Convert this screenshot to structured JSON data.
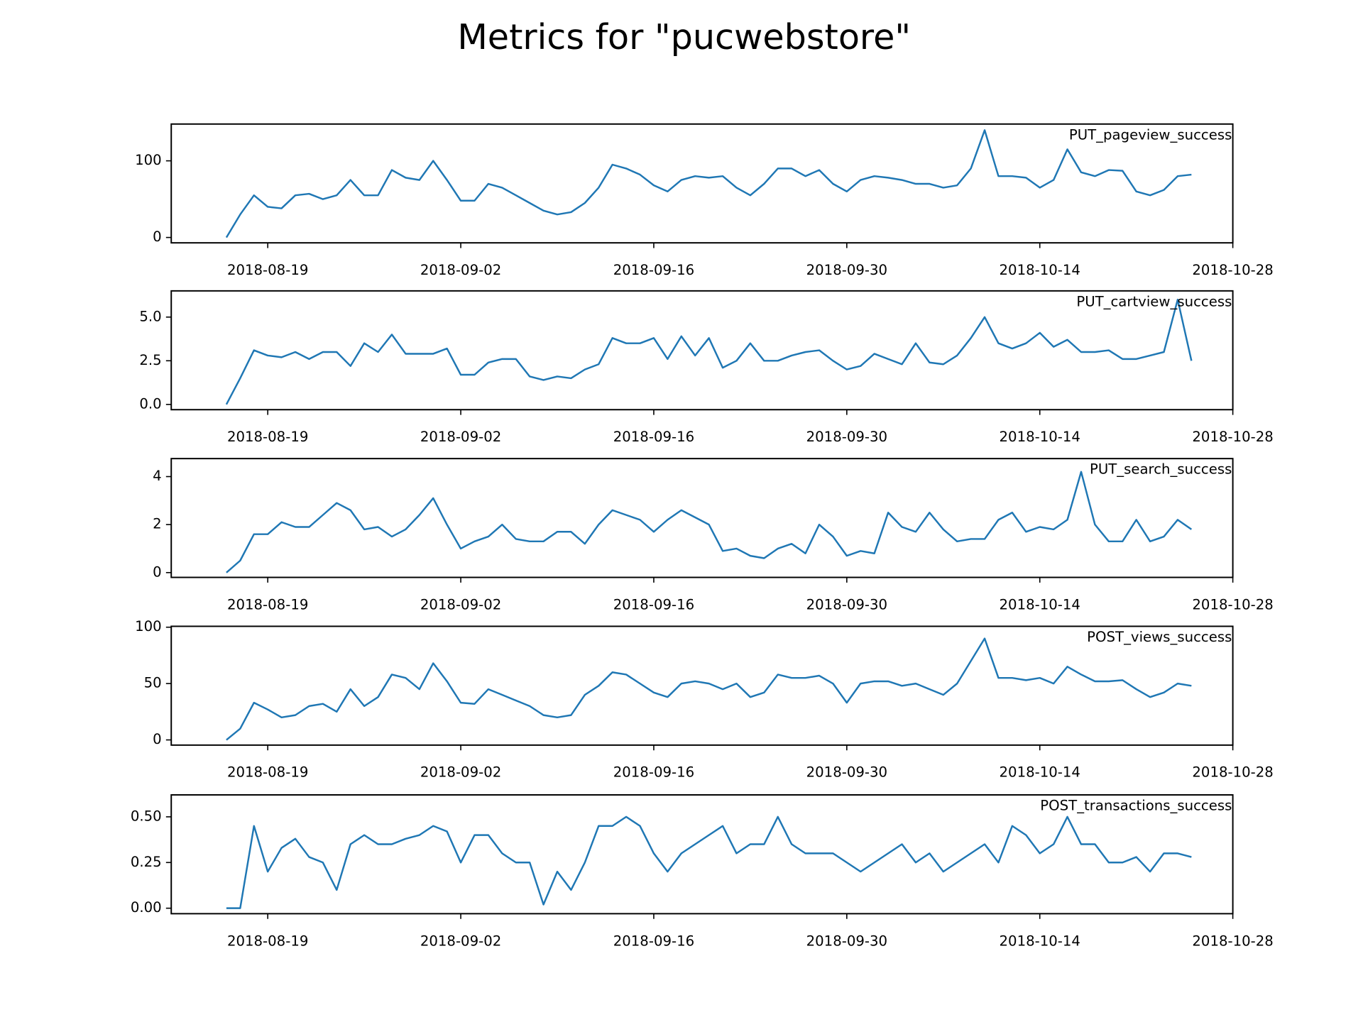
{
  "title": "Metrics for \"pucwebstore\"",
  "chart_data": [
    {
      "type": "line",
      "title": "PUT_pageview_success",
      "color": "#1f77b4",
      "x": [
        "2018-08-16",
        "2018-08-17",
        "2018-08-18",
        "2018-08-19",
        "2018-08-20",
        "2018-08-21",
        "2018-08-22",
        "2018-08-23",
        "2018-08-24",
        "2018-08-25",
        "2018-08-26",
        "2018-08-27",
        "2018-08-28",
        "2018-08-29",
        "2018-08-30",
        "2018-08-31",
        "2018-09-01",
        "2018-09-02",
        "2018-09-03",
        "2018-09-04",
        "2018-09-05",
        "2018-09-06",
        "2018-09-07",
        "2018-09-08",
        "2018-09-09",
        "2018-09-10",
        "2018-09-11",
        "2018-09-12",
        "2018-09-13",
        "2018-09-14",
        "2018-09-15",
        "2018-09-16",
        "2018-09-17",
        "2018-09-18",
        "2018-09-19",
        "2018-09-20",
        "2018-09-21",
        "2018-09-22",
        "2018-09-23",
        "2018-09-24",
        "2018-09-25",
        "2018-09-26",
        "2018-09-27",
        "2018-09-28",
        "2018-09-29",
        "2018-09-30",
        "2018-10-01",
        "2018-10-02",
        "2018-10-03",
        "2018-10-04",
        "2018-10-05",
        "2018-10-06",
        "2018-10-07",
        "2018-10-08",
        "2018-10-09",
        "2018-10-10",
        "2018-10-11",
        "2018-10-12",
        "2018-10-13",
        "2018-10-14",
        "2018-10-15",
        "2018-10-16",
        "2018-10-17",
        "2018-10-18",
        "2018-10-19",
        "2018-10-20",
        "2018-10-21",
        "2018-10-22",
        "2018-10-23",
        "2018-10-24",
        "2018-10-25"
      ],
      "values": [
        0,
        30,
        55,
        40,
        38,
        55,
        57,
        50,
        55,
        75,
        55,
        55,
        88,
        78,
        75,
        100,
        75,
        48,
        48,
        70,
        65,
        55,
        45,
        35,
        30,
        33,
        45,
        65,
        95,
        90,
        82,
        68,
        60,
        75,
        80,
        78,
        80,
        65,
        55,
        70,
        90,
        90,
        80,
        88,
        70,
        60,
        75,
        80,
        78,
        75,
        70,
        70,
        65,
        68,
        90,
        140,
        80,
        80,
        78,
        65,
        75,
        115,
        85,
        80,
        88,
        87,
        60,
        55,
        62,
        80,
        82
      ],
      "xlim": [
        "2018-08-12",
        "2018-10-28"
      ],
      "xticks": [
        "2018-08-19",
        "2018-09-02",
        "2018-09-16",
        "2018-09-30",
        "2018-10-14",
        "2018-10-28"
      ],
      "ylim": [
        -7,
        148
      ],
      "yticks": [
        0,
        100
      ]
    },
    {
      "type": "line",
      "title": "PUT_cartview_success",
      "color": "#1f77b4",
      "x": [
        "2018-08-16",
        "2018-08-17",
        "2018-08-18",
        "2018-08-19",
        "2018-08-20",
        "2018-08-21",
        "2018-08-22",
        "2018-08-23",
        "2018-08-24",
        "2018-08-25",
        "2018-08-26",
        "2018-08-27",
        "2018-08-28",
        "2018-08-29",
        "2018-08-30",
        "2018-08-31",
        "2018-09-01",
        "2018-09-02",
        "2018-09-03",
        "2018-09-04",
        "2018-09-05",
        "2018-09-06",
        "2018-09-07",
        "2018-09-08",
        "2018-09-09",
        "2018-09-10",
        "2018-09-11",
        "2018-09-12",
        "2018-09-13",
        "2018-09-14",
        "2018-09-15",
        "2018-09-16",
        "2018-09-17",
        "2018-09-18",
        "2018-09-19",
        "2018-09-20",
        "2018-09-21",
        "2018-09-22",
        "2018-09-23",
        "2018-09-24",
        "2018-09-25",
        "2018-09-26",
        "2018-09-27",
        "2018-09-28",
        "2018-09-29",
        "2018-09-30",
        "2018-10-01",
        "2018-10-02",
        "2018-10-03",
        "2018-10-04",
        "2018-10-05",
        "2018-10-06",
        "2018-10-07",
        "2018-10-08",
        "2018-10-09",
        "2018-10-10",
        "2018-10-11",
        "2018-10-12",
        "2018-10-13",
        "2018-10-14",
        "2018-10-15",
        "2018-10-16",
        "2018-10-17",
        "2018-10-18",
        "2018-10-19",
        "2018-10-20",
        "2018-10-21",
        "2018-10-22",
        "2018-10-23",
        "2018-10-24",
        "2018-10-25"
      ],
      "values": [
        0,
        1.5,
        3.1,
        2.8,
        2.7,
        3.0,
        2.6,
        3.0,
        3.0,
        2.2,
        3.5,
        3.0,
        4.0,
        2.9,
        2.9,
        2.9,
        3.2,
        1.7,
        1.7,
        2.4,
        2.6,
        2.6,
        1.6,
        1.4,
        1.6,
        1.5,
        2.0,
        2.3,
        3.8,
        3.5,
        3.5,
        3.8,
        2.6,
        3.9,
        2.8,
        3.8,
        2.1,
        2.5,
        3.5,
        2.5,
        2.5,
        2.8,
        3.0,
        3.1,
        2.5,
        2.0,
        2.2,
        2.9,
        2.6,
        2.3,
        3.5,
        2.4,
        2.3,
        2.8,
        3.8,
        5.0,
        3.5,
        3.2,
        3.5,
        4.1,
        3.3,
        3.7,
        3.0,
        3.0,
        3.1,
        2.6,
        2.6,
        2.8,
        3.0,
        6.0,
        2.5
      ],
      "xlim": [
        "2018-08-12",
        "2018-10-28"
      ],
      "xticks": [
        "2018-08-19",
        "2018-09-02",
        "2018-09-16",
        "2018-09-30",
        "2018-10-14",
        "2018-10-28"
      ],
      "ylim": [
        -0.3,
        6.5
      ],
      "yticks": [
        {
          "value": 0,
          "label": "0.0"
        },
        {
          "value": 2.5,
          "label": "2.5"
        },
        {
          "value": 5,
          "label": "5.0"
        }
      ]
    },
    {
      "type": "line",
      "title": "PUT_search_success",
      "color": "#1f77b4",
      "x": [
        "2018-08-16",
        "2018-08-17",
        "2018-08-18",
        "2018-08-19",
        "2018-08-20",
        "2018-08-21",
        "2018-08-22",
        "2018-08-23",
        "2018-08-24",
        "2018-08-25",
        "2018-08-26",
        "2018-08-27",
        "2018-08-28",
        "2018-08-29",
        "2018-08-30",
        "2018-08-31",
        "2018-09-01",
        "2018-09-02",
        "2018-09-03",
        "2018-09-04",
        "2018-09-05",
        "2018-09-06",
        "2018-09-07",
        "2018-09-08",
        "2018-09-09",
        "2018-09-10",
        "2018-09-11",
        "2018-09-12",
        "2018-09-13",
        "2018-09-14",
        "2018-09-15",
        "2018-09-16",
        "2018-09-17",
        "2018-09-18",
        "2018-09-19",
        "2018-09-20",
        "2018-09-21",
        "2018-09-22",
        "2018-09-23",
        "2018-09-24",
        "2018-09-25",
        "2018-09-26",
        "2018-09-27",
        "2018-09-28",
        "2018-09-29",
        "2018-09-30",
        "2018-10-01",
        "2018-10-02",
        "2018-10-03",
        "2018-10-04",
        "2018-10-05",
        "2018-10-06",
        "2018-10-07",
        "2018-10-08",
        "2018-10-09",
        "2018-10-10",
        "2018-10-11",
        "2018-10-12",
        "2018-10-13",
        "2018-10-14",
        "2018-10-15",
        "2018-10-16",
        "2018-10-17",
        "2018-10-18",
        "2018-10-19",
        "2018-10-20",
        "2018-10-21",
        "2018-10-22",
        "2018-10-23",
        "2018-10-24",
        "2018-10-25"
      ],
      "values": [
        0,
        0.5,
        1.6,
        1.6,
        2.1,
        1.9,
        1.9,
        2.4,
        2.9,
        2.6,
        1.8,
        1.9,
        1.5,
        1.8,
        2.4,
        3.1,
        2.0,
        1.0,
        1.3,
        1.5,
        2.0,
        1.4,
        1.3,
        1.3,
        1.7,
        1.7,
        1.2,
        2.0,
        2.6,
        2.4,
        2.2,
        1.7,
        2.2,
        2.6,
        2.3,
        2.0,
        0.9,
        1.0,
        0.7,
        0.6,
        1.0,
        1.2,
        0.8,
        2.0,
        1.5,
        0.7,
        0.9,
        0.8,
        2.5,
        1.9,
        1.7,
        2.5,
        1.8,
        1.3,
        1.4,
        1.4,
        2.2,
        2.5,
        1.7,
        1.9,
        1.8,
        2.2,
        4.2,
        2.0,
        1.3,
        1.3,
        2.2,
        1.3,
        1.5,
        2.2,
        1.8
      ],
      "xlim": [
        "2018-08-12",
        "2018-10-28"
      ],
      "xticks": [
        "2018-08-19",
        "2018-09-02",
        "2018-09-16",
        "2018-09-30",
        "2018-10-14",
        "2018-10-28"
      ],
      "ylim": [
        -0.2,
        4.75
      ],
      "yticks": [
        0,
        2,
        4
      ]
    },
    {
      "type": "line",
      "title": "POST_views_success",
      "color": "#1f77b4",
      "x": [
        "2018-08-16",
        "2018-08-17",
        "2018-08-18",
        "2018-08-19",
        "2018-08-20",
        "2018-08-21",
        "2018-08-22",
        "2018-08-23",
        "2018-08-24",
        "2018-08-25",
        "2018-08-26",
        "2018-08-27",
        "2018-08-28",
        "2018-08-29",
        "2018-08-30",
        "2018-08-31",
        "2018-09-01",
        "2018-09-02",
        "2018-09-03",
        "2018-09-04",
        "2018-09-05",
        "2018-09-06",
        "2018-09-07",
        "2018-09-08",
        "2018-09-09",
        "2018-09-10",
        "2018-09-11",
        "2018-09-12",
        "2018-09-13",
        "2018-09-14",
        "2018-09-15",
        "2018-09-16",
        "2018-09-17",
        "2018-09-18",
        "2018-09-19",
        "2018-09-20",
        "2018-09-21",
        "2018-09-22",
        "2018-09-23",
        "2018-09-24",
        "2018-09-25",
        "2018-09-26",
        "2018-09-27",
        "2018-09-28",
        "2018-09-29",
        "2018-09-30",
        "2018-10-01",
        "2018-10-02",
        "2018-10-03",
        "2018-10-04",
        "2018-10-05",
        "2018-10-06",
        "2018-10-07",
        "2018-10-08",
        "2018-10-09",
        "2018-10-10",
        "2018-10-11",
        "2018-10-12",
        "2018-10-13",
        "2018-10-14",
        "2018-10-15",
        "2018-10-16",
        "2018-10-17",
        "2018-10-18",
        "2018-10-19",
        "2018-10-20",
        "2018-10-21",
        "2018-10-22",
        "2018-10-23",
        "2018-10-24",
        "2018-10-25"
      ],
      "values": [
        0,
        10,
        33,
        27,
        20,
        22,
        30,
        32,
        25,
        45,
        30,
        38,
        58,
        55,
        45,
        68,
        52,
        33,
        32,
        45,
        40,
        35,
        30,
        22,
        20,
        22,
        40,
        48,
        60,
        58,
        50,
        42,
        38,
        50,
        52,
        50,
        45,
        50,
        38,
        42,
        58,
        55,
        55,
        57,
        50,
        33,
        50,
        52,
        52,
        48,
        50,
        45,
        40,
        50,
        70,
        90,
        55,
        55,
        53,
        55,
        50,
        65,
        58,
        52,
        52,
        53,
        45,
        38,
        42,
        50,
        48
      ],
      "xlim": [
        "2018-08-12",
        "2018-10-28"
      ],
      "xticks": [
        "2018-08-19",
        "2018-09-02",
        "2018-09-16",
        "2018-09-30",
        "2018-10-14",
        "2018-10-28"
      ],
      "ylim": [
        -4.6,
        100.8
      ],
      "yticks": [
        0,
        50,
        100
      ]
    },
    {
      "type": "line",
      "title": "POST_transactions_success",
      "color": "#1f77b4",
      "x": [
        "2018-08-16",
        "2018-08-17",
        "2018-08-18",
        "2018-08-19",
        "2018-08-20",
        "2018-08-21",
        "2018-08-22",
        "2018-08-23",
        "2018-08-24",
        "2018-08-25",
        "2018-08-26",
        "2018-08-27",
        "2018-08-28",
        "2018-08-29",
        "2018-08-30",
        "2018-08-31",
        "2018-09-01",
        "2018-09-02",
        "2018-09-03",
        "2018-09-04",
        "2018-09-05",
        "2018-09-06",
        "2018-09-07",
        "2018-09-08",
        "2018-09-09",
        "2018-09-10",
        "2018-09-11",
        "2018-09-12",
        "2018-09-13",
        "2018-09-14",
        "2018-09-15",
        "2018-09-16",
        "2018-09-17",
        "2018-09-18",
        "2018-09-19",
        "2018-09-20",
        "2018-09-21",
        "2018-09-22",
        "2018-09-23",
        "2018-09-24",
        "2018-09-25",
        "2018-09-26",
        "2018-09-27",
        "2018-09-28",
        "2018-09-29",
        "2018-09-30",
        "2018-10-01",
        "2018-10-02",
        "2018-10-03",
        "2018-10-04",
        "2018-10-05",
        "2018-10-06",
        "2018-10-07",
        "2018-10-08",
        "2018-10-09",
        "2018-10-10",
        "2018-10-11",
        "2018-10-12",
        "2018-10-13",
        "2018-10-14",
        "2018-10-15",
        "2018-10-16",
        "2018-10-17",
        "2018-10-18",
        "2018-10-19",
        "2018-10-20",
        "2018-10-21",
        "2018-10-22",
        "2018-10-23",
        "2018-10-24",
        "2018-10-25"
      ],
      "values": [
        0,
        0,
        0.45,
        0.2,
        0.33,
        0.38,
        0.28,
        0.25,
        0.1,
        0.35,
        0.4,
        0.35,
        0.35,
        0.38,
        0.4,
        0.45,
        0.42,
        0.25,
        0.4,
        0.4,
        0.3,
        0.25,
        0.25,
        0.02,
        0.2,
        0.1,
        0.25,
        0.45,
        0.45,
        0.5,
        0.45,
        0.3,
        0.2,
        0.3,
        0.35,
        0.4,
        0.45,
        0.3,
        0.35,
        0.35,
        0.5,
        0.35,
        0.3,
        0.3,
        0.3,
        0.25,
        0.2,
        0.25,
        0.3,
        0.35,
        0.25,
        0.3,
        0.2,
        0.25,
        0.3,
        0.35,
        0.25,
        0.45,
        0.4,
        0.3,
        0.35,
        0.5,
        0.35,
        0.35,
        0.25,
        0.25,
        0.28,
        0.2,
        0.3,
        0.3,
        0.28
      ],
      "xlim": [
        "2018-08-12",
        "2018-10-28"
      ],
      "xticks": [
        "2018-08-19",
        "2018-09-02",
        "2018-09-16",
        "2018-09-30",
        "2018-10-14",
        "2018-10-28"
      ],
      "ylim": [
        -0.03,
        0.62
      ],
      "yticks": [
        {
          "value": 0,
          "label": "0.00"
        },
        {
          "value": 0.25,
          "label": "0.25"
        },
        {
          "value": 0.5,
          "label": "0.50"
        }
      ]
    }
  ]
}
